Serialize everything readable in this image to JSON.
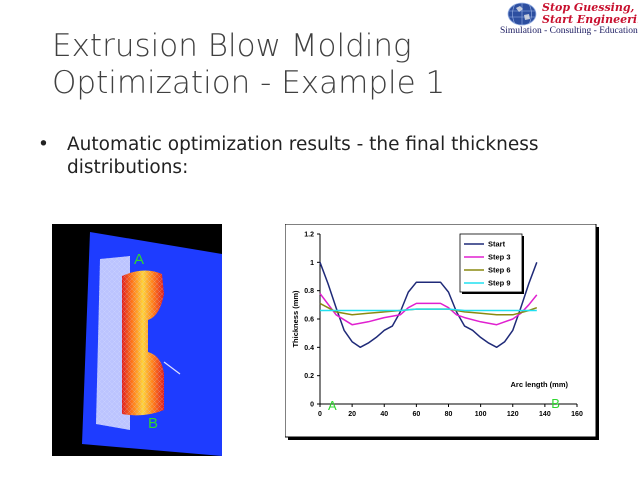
{
  "slide": {
    "title_line1": "Extrusion Blow Molding",
    "title_line2": "Optimization - Example 1",
    "bullet": "Automatic optimization results - the final thickness distributions:",
    "bullet_marker": "•"
  },
  "logo": {
    "slogan_line1": "Stop Guessing,",
    "slogan_line2": "Start Engineering!",
    "tagline": "Simulation - Consulting - Education",
    "brand_color": "#c8102e"
  },
  "simulation_image": {
    "label_a": "A",
    "label_b": "B"
  },
  "chart_data": {
    "type": "line",
    "ylabel": "Thickness (mm)",
    "xlabel": "Arc length (mm)",
    "xlim": [
      0,
      160
    ],
    "ylim": [
      0,
      1.2
    ],
    "x_ticks": [
      "0",
      "20",
      "40",
      "60",
      "80",
      "100",
      "120",
      "140",
      "160"
    ],
    "y_ticks": [
      "0",
      "0.2",
      "0.4",
      "0.6",
      "0.8",
      "1",
      "1.2"
    ],
    "legend_position": "top-right",
    "markers": {
      "start_label": "A",
      "end_label": "B",
      "color": "#2fd62f"
    },
    "series": [
      {
        "name": "Start",
        "color": "#1f2a78",
        "x": [
          0,
          5,
          10,
          15,
          20,
          25,
          30,
          35,
          40,
          45,
          50,
          55,
          60,
          65,
          70,
          75,
          80,
          85,
          90,
          95,
          100,
          105,
          110,
          115,
          120,
          125,
          130,
          135
        ],
        "y": [
          1.0,
          0.85,
          0.68,
          0.52,
          0.44,
          0.4,
          0.43,
          0.47,
          0.52,
          0.55,
          0.65,
          0.79,
          0.86,
          0.86,
          0.86,
          0.86,
          0.79,
          0.65,
          0.55,
          0.52,
          0.47,
          0.43,
          0.4,
          0.44,
          0.52,
          0.68,
          0.85,
          1.0
        ]
      },
      {
        "name": "Step 3",
        "color": "#e020d0",
        "x": [
          0,
          10,
          20,
          30,
          40,
          50,
          55,
          60,
          65,
          70,
          75,
          80,
          85,
          90,
          100,
          110,
          120,
          125,
          130,
          135
        ],
        "y": [
          0.78,
          0.63,
          0.56,
          0.58,
          0.61,
          0.63,
          0.68,
          0.71,
          0.71,
          0.71,
          0.71,
          0.68,
          0.63,
          0.61,
          0.58,
          0.56,
          0.6,
          0.64,
          0.7,
          0.77
        ]
      },
      {
        "name": "Step 6",
        "color": "#8a8a10",
        "x": [
          0,
          10,
          20,
          30,
          40,
          50,
          60,
          70,
          80,
          90,
          100,
          110,
          120,
          130,
          135
        ],
        "y": [
          0.71,
          0.65,
          0.63,
          0.64,
          0.65,
          0.66,
          0.67,
          0.67,
          0.67,
          0.65,
          0.64,
          0.63,
          0.63,
          0.66,
          0.68
        ]
      },
      {
        "name": "Step 9",
        "color": "#20e0f0",
        "x": [
          0,
          10,
          20,
          30,
          40,
          50,
          60,
          70,
          80,
          90,
          100,
          110,
          120,
          130,
          135
        ],
        "y": [
          0.66,
          0.66,
          0.66,
          0.66,
          0.66,
          0.66,
          0.67,
          0.67,
          0.67,
          0.66,
          0.66,
          0.66,
          0.66,
          0.66,
          0.66
        ]
      }
    ]
  }
}
